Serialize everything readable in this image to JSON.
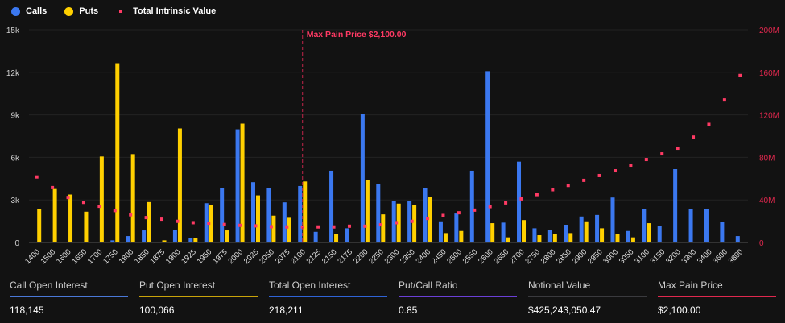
{
  "legend": [
    {
      "label": "Calls",
      "color": "#3b78f0"
    },
    {
      "label": "Puts",
      "color": "#ffd000"
    },
    {
      "label": "Total Intrinsic Value",
      "color": "#ff3a64"
    }
  ],
  "stats": [
    {
      "label": "Call Open Interest",
      "value": "118,145",
      "color": "#4a78d8"
    },
    {
      "label": "Put Open Interest",
      "value": "100,066",
      "color": "#c9a30a"
    },
    {
      "label": "Total Open Interest",
      "value": "218,211",
      "color": "#2f63d6"
    },
    {
      "label": "Put/Call Ratio",
      "value": "0.85",
      "color": "#6a3fd6"
    },
    {
      "label": "Notional Value",
      "value": "$425,243,050.47",
      "color": "#3a3a3e"
    },
    {
      "label": "Max Pain Price",
      "value": "$2,100.00",
      "color": "#e0284e"
    }
  ],
  "chart_data": {
    "type": "bar",
    "categories": [
      "1400",
      "1500",
      "1600",
      "1650",
      "1700",
      "1750",
      "1800",
      "1850",
      "1875",
      "1900",
      "1925",
      "1950",
      "1975",
      "2000",
      "2025",
      "2050",
      "2075",
      "2100",
      "2125",
      "2150",
      "2175",
      "2200",
      "2250",
      "2300",
      "2350",
      "2400",
      "2450",
      "2500",
      "2550",
      "2600",
      "2650",
      "2700",
      "2750",
      "2800",
      "2850",
      "2900",
      "2950",
      "3000",
      "3050",
      "3100",
      "3150",
      "3200",
      "3300",
      "3400",
      "3600",
      "3800"
    ],
    "series": [
      {
        "name": "Calls",
        "axis": "left",
        "values": [
          0,
          0,
          0,
          0,
          0,
          150,
          450,
          850,
          0,
          900,
          300,
          2770,
          3830,
          7980,
          4250,
          3830,
          2830,
          3980,
          750,
          5060,
          1000,
          9080,
          4110,
          2900,
          2920,
          3830,
          1490,
          2040,
          5060,
          12080,
          1400,
          5700,
          1000,
          900,
          1250,
          1830,
          1940,
          3170,
          810,
          2340,
          1150,
          5170,
          2380,
          2380,
          1450,
          450
        ]
      },
      {
        "name": "Puts",
        "axis": "left",
        "values": [
          2350,
          3770,
          3380,
          2170,
          6060,
          12640,
          6230,
          2850,
          150,
          8040,
          300,
          2620,
          850,
          8380,
          3320,
          1890,
          1740,
          4300,
          0,
          600,
          0,
          4430,
          1980,
          2740,
          2620,
          3230,
          660,
          810,
          50,
          1360,
          360,
          1580,
          510,
          600,
          660,
          1490,
          1000,
          600,
          360,
          1360,
          0,
          0,
          0,
          0,
          0,
          0
        ]
      },
      {
        "name": "Total Intrinsic Value",
        "axis": "right",
        "type": "scatter",
        "values": [
          61.6,
          51.6,
          42.3,
          37.7,
          34,
          30,
          26,
          23.4,
          21.9,
          19.9,
          18.6,
          18.1,
          16.9,
          16.1,
          15.6,
          14.8,
          14.6,
          14.6,
          14.6,
          14.6,
          15.3,
          15.3,
          16.6,
          18.6,
          19.9,
          22.6,
          25.4,
          27.9,
          30.4,
          33.7,
          37.2,
          41,
          45,
          49.6,
          53.6,
          58.4,
          62.9,
          67.4,
          72.7,
          78,
          83.3,
          88.6,
          99.1,
          111,
          134,
          157
        ]
      }
    ],
    "left_axis": {
      "range": [
        0,
        15000
      ],
      "ticks": [
        "0",
        "3k",
        "6k",
        "9k",
        "12k",
        "15k"
      ],
      "tick_values": [
        0,
        3000,
        6000,
        9000,
        12000,
        15000
      ]
    },
    "right_axis": {
      "range": [
        0,
        200
      ],
      "unit": "M",
      "ticks": [
        "0",
        "40M",
        "80M",
        "120M",
        "160M",
        "200M"
      ],
      "tick_values": [
        0,
        40,
        80,
        120,
        160,
        200
      ]
    },
    "annotation": {
      "label": "Max Pain Price $2,100.00",
      "category": "2100"
    },
    "grid": true,
    "legend_position": "top-left"
  }
}
